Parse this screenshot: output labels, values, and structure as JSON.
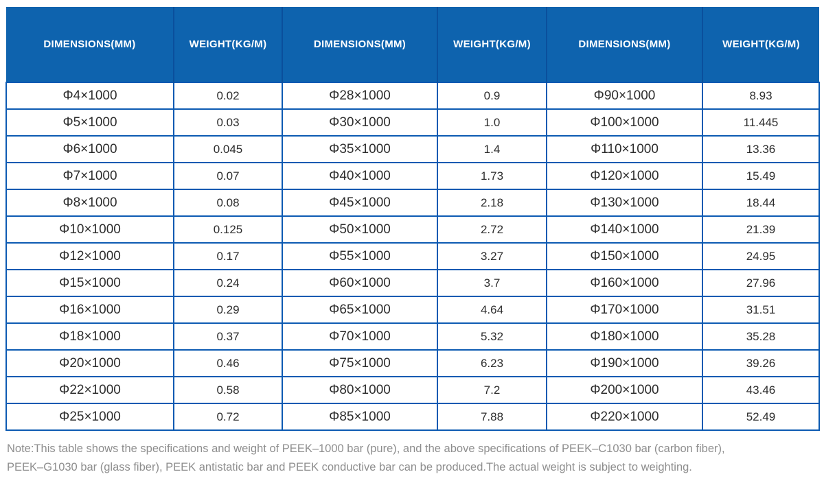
{
  "table": {
    "header_columns": [
      "DIMENSIONS(MM)",
      "WEIGHT(KG/M)",
      "DIMENSIONS(MM)",
      "WEIGHT(KG/M)",
      "DIMENSIONS(MM)",
      "WEIGHT(KG/M)"
    ],
    "rows": [
      [
        "Φ4×1000",
        "0.02",
        "Φ28×1000",
        "0.9",
        "Φ90×1000",
        "8.93"
      ],
      [
        "Φ5×1000",
        "0.03",
        "Φ30×1000",
        "1.0",
        "Φ100×1000",
        "11.445"
      ],
      [
        "Φ6×1000",
        "0.045",
        "Φ35×1000",
        "1.4",
        "Φ110×1000",
        "13.36"
      ],
      [
        "Φ7×1000",
        "0.07",
        "Φ40×1000",
        "1.73",
        "Φ120×1000",
        "15.49"
      ],
      [
        "Φ8×1000",
        "0.08",
        "Φ45×1000",
        "2.18",
        "Φ130×1000",
        "18.44"
      ],
      [
        "Φ10×1000",
        "0.125",
        "Φ50×1000",
        "2.72",
        "Φ140×1000",
        "21.39"
      ],
      [
        "Φ12×1000",
        "0.17",
        "Φ55×1000",
        "3.27",
        "Φ150×1000",
        "24.95"
      ],
      [
        "Φ15×1000",
        "0.24",
        "Φ60×1000",
        "3.7",
        "Φ160×1000",
        "27.96"
      ],
      [
        "Φ16×1000",
        "0.29",
        "Φ65×1000",
        "4.64",
        "Φ170×1000",
        "31.51"
      ],
      [
        "Φ18×1000",
        "0.37",
        "Φ70×1000",
        "5.32",
        "Φ180×1000",
        "35.28"
      ],
      [
        "Φ20×1000",
        "0.46",
        "Φ75×1000",
        "6.23",
        "Φ190×1000",
        "39.26"
      ],
      [
        "Φ22×1000",
        "0.58",
        "Φ80×1000",
        "7.2",
        "Φ200×1000",
        "43.46"
      ],
      [
        "Φ25×1000",
        "0.72",
        "Φ85×1000",
        "7.88",
        "Φ220×1000",
        "52.49"
      ]
    ]
  },
  "note": {
    "line1": "Note:This table shows the specifications and weight of PEEK–1000 bar (pure), and the above specifications of PEEK–C1030 bar (carbon fiber),",
    "line2": "PEEK–G1030 bar (glass fiber), PEEK antistatic bar and PEEK conductive bar can be produced.The actual weight is subject to weighting."
  },
  "colors": {
    "header_bg": "#0e63ae",
    "header_divider": "#0a4f9c",
    "grid_border": "#0c5ab2",
    "cell_text": "#2d2d2d",
    "note_text": "#8e8e8e"
  }
}
